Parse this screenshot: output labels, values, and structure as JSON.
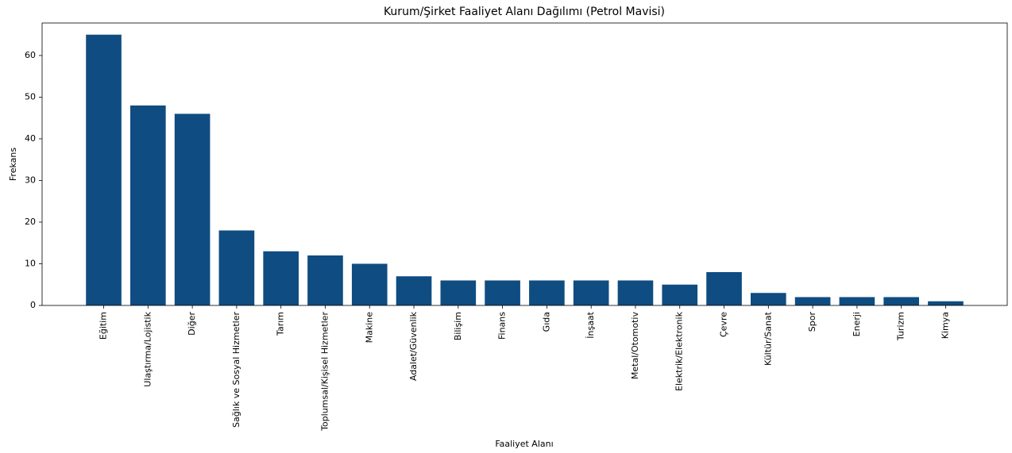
{
  "chart_data": {
    "type": "bar",
    "title": "Kurum/Şirket Faaliyet Alanı Dağılımı (Petrol Mavisi)",
    "x_label": "Faaliyet Alanı",
    "y_label": "Frekans",
    "categories": [
      "Eğitim",
      "Ulaştırma/Lojistik",
      "Diğer",
      "Sağlık ve Sosyal Hizmetler",
      "Tarım",
      "Toplumsal/Kişisel Hizmetler",
      "Makine",
      "Adalet/Güvenlik",
      "Bilişim",
      "Finans",
      "Gıda",
      "İnşaat",
      "Metal/Otomotiv",
      "Elektrik/Elektronik",
      "Çevre",
      "Kültür/Sanat",
      "Spor",
      "Enerji",
      "Turizm",
      "Kimya"
    ],
    "values": [
      65,
      48,
      46,
      18,
      13,
      12,
      10,
      7,
      6,
      6,
      6,
      6,
      6,
      5,
      8,
      3,
      2,
      2,
      2,
      1
    ],
    "color": "#0f4c81",
    "ylim": [
      0,
      67.8
    ],
    "yticks": [
      0,
      10,
      20,
      30,
      40,
      50,
      60
    ],
    "grid": false
  }
}
